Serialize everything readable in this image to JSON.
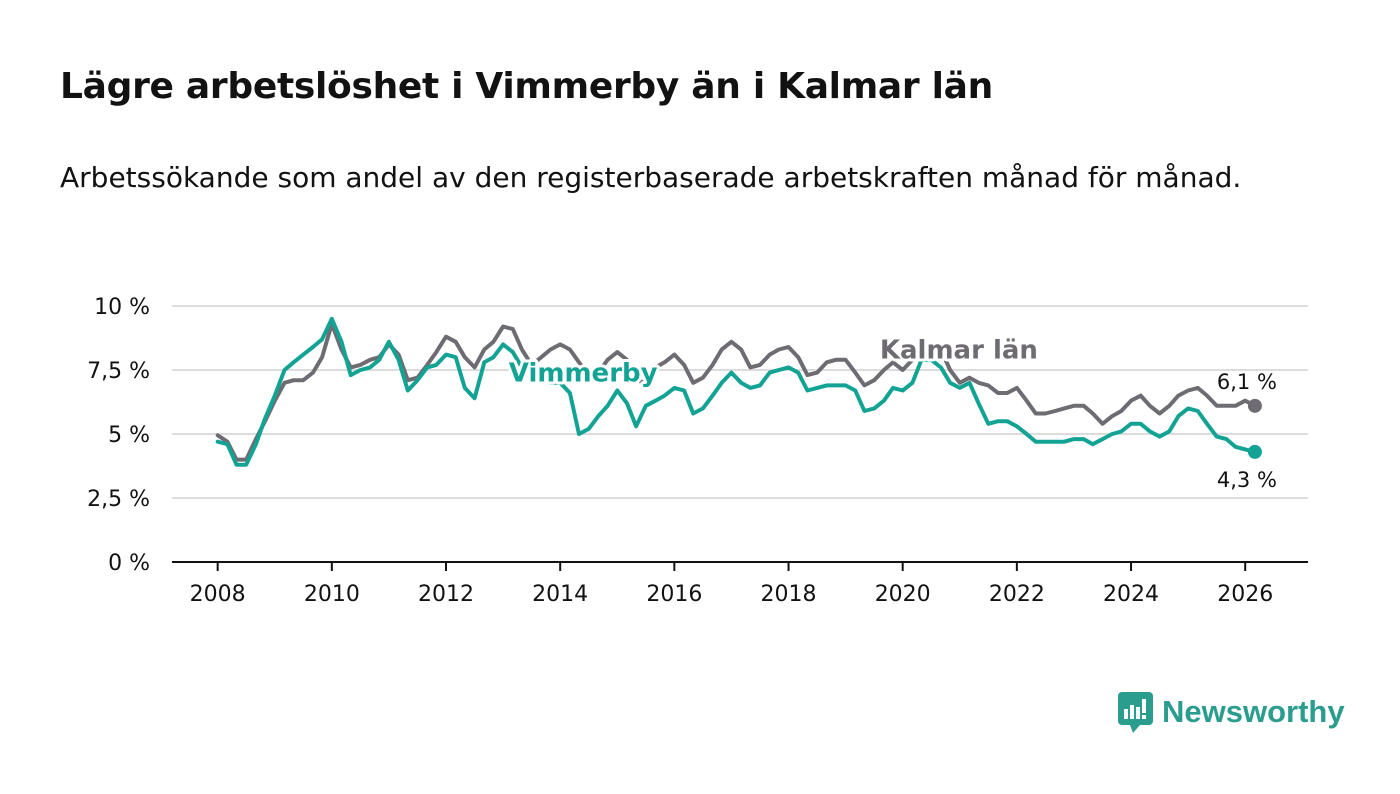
{
  "header": {
    "title": "Lägre arbetslöshet i Vimmerby än i Kalmar län",
    "subtitle": "Arbetssökande som andel av den registerbaserade arbetskraften månad för månad."
  },
  "brand": {
    "name": "Newsworthy",
    "color": "#2a9d8f"
  },
  "chart_data": {
    "type": "line",
    "title": "Lägre arbetslöshet i Vimmerby än i Kalmar län",
    "subtitle": "Arbetssökande som andel av den registerbaserade arbetskraften månad för månad.",
    "xlabel": "",
    "ylabel": "",
    "xlim": [
      2007.2,
      2027.1
    ],
    "ylim": [
      0,
      10
    ],
    "grid": true,
    "x_ticks": [
      2008,
      2010,
      2012,
      2014,
      2016,
      2018,
      2020,
      2022,
      2024,
      2026
    ],
    "x_tick_labels": [
      "2008",
      "2010",
      "2012",
      "2014",
      "2016",
      "2018",
      "2020",
      "2022",
      "2024",
      "2026"
    ],
    "y_ticks": [
      0,
      2.5,
      5,
      7.5,
      10
    ],
    "y_tick_labels": [
      "0 %",
      "2,5 %",
      "5 %",
      "7,5 %",
      "10 %"
    ],
    "series": [
      {
        "name": "Kalmar län",
        "color": "#6e6c72",
        "end_label": "6,1 %",
        "points": [
          [
            2008.0,
            4.95
          ],
          [
            2008.17,
            4.7
          ],
          [
            2008.33,
            4.0
          ],
          [
            2008.5,
            4.0
          ],
          [
            2008.67,
            4.8
          ],
          [
            2008.83,
            5.5
          ],
          [
            2009.0,
            6.3
          ],
          [
            2009.17,
            7.0
          ],
          [
            2009.33,
            7.1
          ],
          [
            2009.5,
            7.1
          ],
          [
            2009.67,
            7.4
          ],
          [
            2009.83,
            8.0
          ],
          [
            2010.0,
            9.3
          ],
          [
            2010.17,
            8.3
          ],
          [
            2010.33,
            7.6
          ],
          [
            2010.5,
            7.7
          ],
          [
            2010.67,
            7.9
          ],
          [
            2010.83,
            8.0
          ],
          [
            2011.0,
            8.5
          ],
          [
            2011.17,
            8.1
          ],
          [
            2011.33,
            7.1
          ],
          [
            2011.5,
            7.2
          ],
          [
            2011.67,
            7.7
          ],
          [
            2011.83,
            8.2
          ],
          [
            2012.0,
            8.8
          ],
          [
            2012.17,
            8.6
          ],
          [
            2012.33,
            8.0
          ],
          [
            2012.5,
            7.6
          ],
          [
            2012.67,
            8.3
          ],
          [
            2012.83,
            8.6
          ],
          [
            2013.0,
            9.2
          ],
          [
            2013.17,
            9.1
          ],
          [
            2013.33,
            8.3
          ],
          [
            2013.5,
            7.7
          ],
          [
            2013.67,
            8.0
          ],
          [
            2013.83,
            8.3
          ],
          [
            2014.0,
            8.5
          ],
          [
            2014.17,
            8.3
          ],
          [
            2014.33,
            7.8
          ],
          [
            2014.5,
            7.3
          ],
          [
            2014.67,
            7.4
          ],
          [
            2014.83,
            7.9
          ],
          [
            2015.0,
            8.2
          ],
          [
            2015.17,
            7.9
          ],
          [
            2015.33,
            7.1
          ],
          [
            2015.5,
            7.0
          ],
          [
            2015.67,
            7.6
          ],
          [
            2015.83,
            7.8
          ],
          [
            2016.0,
            8.1
          ],
          [
            2016.17,
            7.7
          ],
          [
            2016.33,
            7.0
          ],
          [
            2016.5,
            7.2
          ],
          [
            2016.67,
            7.7
          ],
          [
            2016.83,
            8.3
          ],
          [
            2017.0,
            8.6
          ],
          [
            2017.17,
            8.3
          ],
          [
            2017.33,
            7.6
          ],
          [
            2017.5,
            7.7
          ],
          [
            2017.67,
            8.1
          ],
          [
            2017.83,
            8.3
          ],
          [
            2018.0,
            8.4
          ],
          [
            2018.17,
            8.0
          ],
          [
            2018.33,
            7.3
          ],
          [
            2018.5,
            7.4
          ],
          [
            2018.67,
            7.8
          ],
          [
            2018.83,
            7.9
          ],
          [
            2019.0,
            7.9
          ],
          [
            2019.17,
            7.4
          ],
          [
            2019.33,
            6.9
          ],
          [
            2019.5,
            7.1
          ],
          [
            2019.67,
            7.5
          ],
          [
            2019.83,
            7.8
          ],
          [
            2020.0,
            7.5
          ],
          [
            2020.17,
            7.9
          ],
          [
            2020.33,
            8.4
          ],
          [
            2020.5,
            8.5
          ],
          [
            2020.67,
            8.3
          ],
          [
            2020.83,
            7.5
          ],
          [
            2021.0,
            7.0
          ],
          [
            2021.17,
            7.2
          ],
          [
            2021.33,
            7.0
          ],
          [
            2021.5,
            6.9
          ],
          [
            2021.67,
            6.6
          ],
          [
            2021.83,
            6.6
          ],
          [
            2022.0,
            6.8
          ],
          [
            2022.17,
            6.3
          ],
          [
            2022.33,
            5.8
          ],
          [
            2022.5,
            5.8
          ],
          [
            2022.67,
            5.9
          ],
          [
            2022.83,
            6.0
          ],
          [
            2023.0,
            6.1
          ],
          [
            2023.17,
            6.1
          ],
          [
            2023.33,
            5.8
          ],
          [
            2023.5,
            5.4
          ],
          [
            2023.67,
            5.7
          ],
          [
            2023.83,
            5.9
          ],
          [
            2024.0,
            6.3
          ],
          [
            2024.17,
            6.5
          ],
          [
            2024.33,
            6.1
          ],
          [
            2024.5,
            5.8
          ],
          [
            2024.67,
            6.1
          ],
          [
            2024.83,
            6.5
          ],
          [
            2025.0,
            6.7
          ],
          [
            2025.17,
            6.8
          ],
          [
            2025.33,
            6.5
          ],
          [
            2025.5,
            6.1
          ],
          [
            2025.67,
            6.1
          ],
          [
            2025.83,
            6.1
          ],
          [
            2026.0,
            6.3
          ],
          [
            2026.17,
            6.1
          ]
        ]
      },
      {
        "name": "Vimmerby",
        "color": "#13a394",
        "end_label": "4,3 %",
        "points": [
          [
            2008.0,
            4.7
          ],
          [
            2008.17,
            4.6
          ],
          [
            2008.33,
            3.8
          ],
          [
            2008.5,
            3.8
          ],
          [
            2008.67,
            4.6
          ],
          [
            2008.83,
            5.6
          ],
          [
            2009.0,
            6.5
          ],
          [
            2009.17,
            7.5
          ],
          [
            2009.33,
            7.8
          ],
          [
            2009.5,
            8.1
          ],
          [
            2009.67,
            8.4
          ],
          [
            2009.83,
            8.7
          ],
          [
            2010.0,
            9.5
          ],
          [
            2010.17,
            8.6
          ],
          [
            2010.33,
            7.3
          ],
          [
            2010.5,
            7.5
          ],
          [
            2010.67,
            7.6
          ],
          [
            2010.83,
            7.9
          ],
          [
            2011.0,
            8.6
          ],
          [
            2011.17,
            7.9
          ],
          [
            2011.33,
            6.7
          ],
          [
            2011.5,
            7.1
          ],
          [
            2011.67,
            7.6
          ],
          [
            2011.83,
            7.7
          ],
          [
            2012.0,
            8.1
          ],
          [
            2012.17,
            8.0
          ],
          [
            2012.33,
            6.8
          ],
          [
            2012.5,
            6.4
          ],
          [
            2012.67,
            7.8
          ],
          [
            2012.83,
            8.0
          ],
          [
            2013.0,
            8.5
          ],
          [
            2013.17,
            8.2
          ],
          [
            2013.33,
            7.6
          ],
          [
            2013.5,
            7.4
          ],
          [
            2013.67,
            7.4
          ],
          [
            2013.83,
            7.0
          ],
          [
            2014.0,
            7.0
          ],
          [
            2014.17,
            6.6
          ],
          [
            2014.33,
            5.0
          ],
          [
            2014.5,
            5.2
          ],
          [
            2014.67,
            5.7
          ],
          [
            2014.83,
            6.1
          ],
          [
            2015.0,
            6.7
          ],
          [
            2015.17,
            6.2
          ],
          [
            2015.33,
            5.3
          ],
          [
            2015.5,
            6.1
          ],
          [
            2015.67,
            6.3
          ],
          [
            2015.83,
            6.5
          ],
          [
            2016.0,
            6.8
          ],
          [
            2016.17,
            6.7
          ],
          [
            2016.33,
            5.8
          ],
          [
            2016.5,
            6.0
          ],
          [
            2016.67,
            6.5
          ],
          [
            2016.83,
            7.0
          ],
          [
            2017.0,
            7.4
          ],
          [
            2017.17,
            7.0
          ],
          [
            2017.33,
            6.8
          ],
          [
            2017.5,
            6.9
          ],
          [
            2017.67,
            7.4
          ],
          [
            2017.83,
            7.5
          ],
          [
            2018.0,
            7.6
          ],
          [
            2018.17,
            7.4
          ],
          [
            2018.33,
            6.7
          ],
          [
            2018.5,
            6.8
          ],
          [
            2018.67,
            6.9
          ],
          [
            2018.83,
            6.9
          ],
          [
            2019.0,
            6.9
          ],
          [
            2019.17,
            6.7
          ],
          [
            2019.33,
            5.9
          ],
          [
            2019.5,
            6.0
          ],
          [
            2019.67,
            6.3
          ],
          [
            2019.83,
            6.8
          ],
          [
            2020.0,
            6.7
          ],
          [
            2020.17,
            7.0
          ],
          [
            2020.33,
            7.9
          ],
          [
            2020.5,
            7.9
          ],
          [
            2020.67,
            7.6
          ],
          [
            2020.83,
            7.0
          ],
          [
            2021.0,
            6.8
          ],
          [
            2021.17,
            7.0
          ],
          [
            2021.33,
            6.2
          ],
          [
            2021.5,
            5.4
          ],
          [
            2021.67,
            5.5
          ],
          [
            2021.83,
            5.5
          ],
          [
            2022.0,
            5.3
          ],
          [
            2022.17,
            5.0
          ],
          [
            2022.33,
            4.7
          ],
          [
            2022.5,
            4.7
          ],
          [
            2022.67,
            4.7
          ],
          [
            2022.83,
            4.7
          ],
          [
            2023.0,
            4.8
          ],
          [
            2023.17,
            4.8
          ],
          [
            2023.33,
            4.6
          ],
          [
            2023.5,
            4.8
          ],
          [
            2023.67,
            5.0
          ],
          [
            2023.83,
            5.1
          ],
          [
            2024.0,
            5.4
          ],
          [
            2024.17,
            5.4
          ],
          [
            2024.33,
            5.1
          ],
          [
            2024.5,
            4.9
          ],
          [
            2024.67,
            5.1
          ],
          [
            2024.83,
            5.7
          ],
          [
            2025.0,
            6.0
          ],
          [
            2025.17,
            5.9
          ],
          [
            2025.33,
            5.4
          ],
          [
            2025.5,
            4.9
          ],
          [
            2025.67,
            4.8
          ],
          [
            2025.83,
            4.5
          ],
          [
            2026.0,
            4.4
          ],
          [
            2026.17,
            4.3
          ]
        ]
      }
    ],
    "annotations": [
      {
        "series": "Kalmar län",
        "text": "Kalmar län",
        "at_x": 2019.6,
        "at_y": 7.95
      },
      {
        "series": "Vimmerby",
        "text": "Vimmerby",
        "at_x": 2013.1,
        "at_y": 7.05
      }
    ]
  }
}
